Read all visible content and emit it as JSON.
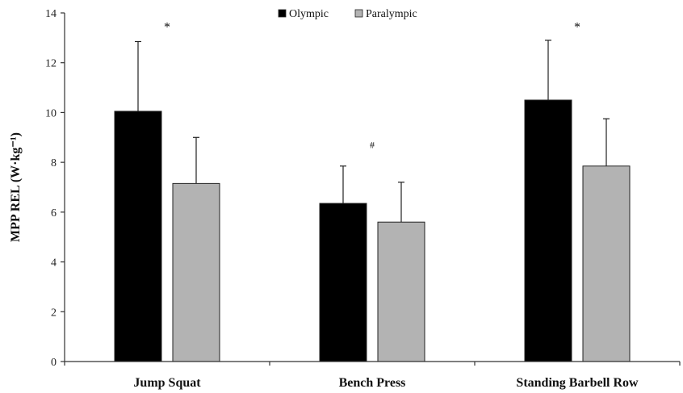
{
  "chart_data": {
    "type": "bar",
    "categories": [
      "Jump Squat",
      "Bench Press",
      "Standing Barbell Row"
    ],
    "series": [
      {
        "name": "Olympic",
        "values": [
          10.05,
          6.35,
          10.5
        ],
        "errors": [
          2.8,
          1.5,
          2.4
        ],
        "color": "#000000"
      },
      {
        "name": "Paralympic",
        "values": [
          7.15,
          5.6,
          7.85
        ],
        "errors": [
          1.85,
          1.6,
          1.9
        ],
        "color": "#b3b3b3"
      }
    ],
    "annotations": [
      {
        "text": "*",
        "category": "Jump Squat",
        "y": 13.6
      },
      {
        "text": "#",
        "category": "Bench Press",
        "y": 8.7
      },
      {
        "text": "*",
        "category": "Standing Barbell Row",
        "y": 13.6
      }
    ],
    "ylabel": "MPP REL (W·kg⁻¹)",
    "xlabel": "",
    "ylim": [
      0,
      14
    ],
    "yticks": [
      0,
      2,
      4,
      6,
      8,
      10,
      12,
      14
    ],
    "legend_position": "top-center",
    "grid": false
  }
}
